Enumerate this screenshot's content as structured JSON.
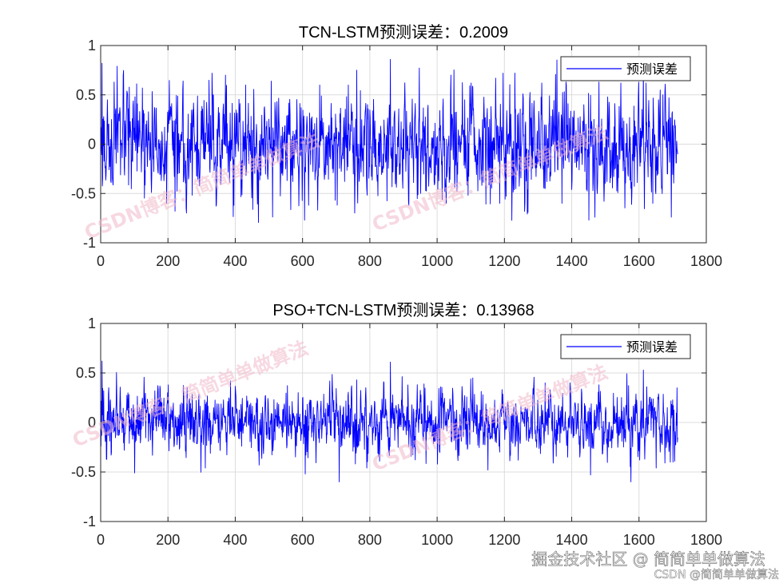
{
  "charts": [
    {
      "type": "line",
      "title": "TCN-LSTM预测误差：0.2009",
      "series_name": "预测误差",
      "legend": "top-right",
      "xlim": [
        0,
        1800
      ],
      "ylim": [
        -1,
        1
      ],
      "xticks": [
        0,
        200,
        400,
        600,
        800,
        1000,
        1200,
        1400,
        1600,
        1800
      ],
      "yticks": [
        -1,
        -0.5,
        0,
        0.5,
        1
      ],
      "xtick_labels": [
        "0",
        "200",
        "400",
        "600",
        "800",
        "1000",
        "1200",
        "1400",
        "1600",
        "1800"
      ],
      "ytick_labels": [
        "-1",
        "-0.5",
        "0",
        "0.5",
        "1"
      ],
      "n_points": 1715,
      "noise_amplitude": 0.25,
      "seed": 17,
      "spikes": [
        [
          3,
          0.82
        ],
        [
          8,
          0.28
        ],
        [
          12,
          -0.24
        ],
        [
          48,
          0.79
        ],
        [
          150,
          -0.49
        ],
        [
          195,
          -0.6
        ],
        [
          220,
          -0.68
        ],
        [
          330,
          0.72
        ],
        [
          370,
          0.7
        ],
        [
          395,
          -0.62
        ],
        [
          430,
          0.6
        ],
        [
          605,
          -0.77
        ],
        [
          650,
          0.6
        ],
        [
          735,
          0.6
        ],
        [
          760,
          0.75
        ],
        [
          860,
          0.86
        ],
        [
          915,
          -0.62
        ],
        [
          1040,
          0.7
        ],
        [
          1100,
          0.62
        ],
        [
          1185,
          -0.6
        ],
        [
          1195,
          0.72
        ],
        [
          1310,
          0.62
        ],
        [
          1370,
          -0.6
        ],
        [
          1450,
          -0.77
        ],
        [
          1480,
          0.63
        ],
        [
          1545,
          0.62
        ],
        [
          1620,
          0.62
        ],
        [
          1640,
          -0.6
        ],
        [
          1688,
          0.47
        ],
        [
          1695,
          -0.74
        ]
      ],
      "line_color": "#0000ff"
    },
    {
      "type": "line",
      "title": "PSO+TCN-LSTM预测误差：0.13968",
      "series_name": "预测误差",
      "legend": "top-right",
      "xlim": [
        0,
        1800
      ],
      "ylim": [
        -1,
        1
      ],
      "xticks": [
        0,
        200,
        400,
        600,
        800,
        1000,
        1200,
        1400,
        1600,
        1800
      ],
      "yticks": [
        -1,
        -0.5,
        0,
        0.5,
        1
      ],
      "xtick_labels": [
        "0",
        "200",
        "400",
        "600",
        "800",
        "1000",
        "1200",
        "1400",
        "1600",
        "1800"
      ],
      "ytick_labels": [
        "-1",
        "-0.5",
        "0",
        "0.5",
        "1"
      ],
      "n_points": 1715,
      "noise_amplitude": 0.16,
      "seed": 91,
      "spikes": [
        [
          3,
          0.62
        ],
        [
          8,
          0.32
        ],
        [
          30,
          -0.33
        ],
        [
          200,
          0.38
        ],
        [
          310,
          -0.46
        ],
        [
          385,
          0.42
        ],
        [
          470,
          -0.43
        ],
        [
          607,
          -0.52
        ],
        [
          680,
          0.42
        ],
        [
          708,
          -0.6
        ],
        [
          760,
          0.43
        ],
        [
          790,
          -0.46
        ],
        [
          860,
          0.61
        ],
        [
          960,
          0.39
        ],
        [
          1000,
          -0.42
        ],
        [
          1105,
          0.45
        ],
        [
          1150,
          -0.48
        ],
        [
          1240,
          -0.38
        ],
        [
          1320,
          0.4
        ],
        [
          1455,
          -0.53
        ],
        [
          1480,
          0.38
        ],
        [
          1575,
          -0.6
        ],
        [
          1612,
          0.53
        ],
        [
          1650,
          -0.46
        ],
        [
          1700,
          -0.4
        ],
        [
          1712,
          0.35
        ]
      ],
      "line_color": "#0000ff"
    }
  ],
  "chart_data": [
    {
      "type": "line",
      "title": "TCN-LSTM预测误差：0.2009",
      "xlabel": "",
      "ylabel": "",
      "xlim": [
        0,
        1800
      ],
      "ylim": [
        -1,
        1
      ],
      "legend": [
        "预测误差"
      ],
      "series": [
        {
          "name": "预测误差",
          "x_range": [
            1,
            1715
          ],
          "peak_values": [
            0.86,
            -0.77
          ]
        }
      ]
    },
    {
      "type": "line",
      "title": "PSO+TCN-LSTM预测误差：0.13968",
      "xlabel": "",
      "ylabel": "",
      "xlim": [
        0,
        1800
      ],
      "ylim": [
        -1,
        1
      ],
      "legend": [
        "预测误差"
      ],
      "series": [
        {
          "name": "预测误差",
          "x_range": [
            1,
            1715
          ],
          "peak_values": [
            0.62,
            -0.6
          ]
        }
      ]
    }
  ],
  "watermarks": {
    "diagonal": "CSDN博客：简简单单做算法",
    "footer_main": "掘金技术社区 @ 简简单单做算法",
    "footer_sub": "CSDN @简简单单做算法"
  },
  "colors": {
    "axis": "#262626",
    "grid": "#dcdcdc",
    "line": "#0000ff",
    "watermark": "#f0b8c8"
  }
}
